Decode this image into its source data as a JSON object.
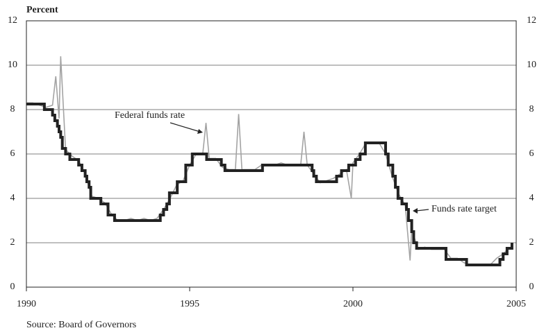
{
  "chart_data": {
    "type": "line",
    "y_label": "Percent",
    "source": "Source: Board of Governors",
    "xlim": [
      1990,
      2005
    ],
    "xticks": [
      1990,
      1995,
      2000,
      2005
    ],
    "ylim": [
      0,
      12
    ],
    "yticks": [
      0,
      2,
      4,
      6,
      8,
      10,
      12
    ],
    "grid": true,
    "series": [
      {
        "name": "Federal funds rate",
        "color": "#a3a3a3",
        "step": false,
        "x": [
          1990.0,
          1990.2,
          1990.4,
          1990.6,
          1990.8,
          1990.9,
          1991.0,
          1991.05,
          1991.2,
          1991.4,
          1991.6,
          1991.8,
          1992.0,
          1992.2,
          1992.4,
          1992.6,
          1992.8,
          1993.0,
          1993.2,
          1993.4,
          1993.6,
          1993.8,
          1994.0,
          1994.2,
          1994.4,
          1994.6,
          1994.8,
          1995.0,
          1995.2,
          1995.4,
          1995.5,
          1995.6,
          1995.8,
          1996.0,
          1996.2,
          1996.4,
          1996.5,
          1996.6,
          1996.8,
          1997.0,
          1997.2,
          1997.4,
          1997.6,
          1997.8,
          1998.0,
          1998.2,
          1998.4,
          1998.5,
          1998.6,
          1998.8,
          1999.0,
          1999.2,
          1999.4,
          1999.6,
          1999.8,
          1999.95,
          2000.0,
          2000.2,
          2000.4,
          2000.6,
          2000.8,
          2001.0,
          2001.2,
          2001.4,
          2001.6,
          2001.75,
          2001.8,
          2002.0,
          2002.2,
          2002.4,
          2002.6,
          2002.8,
          2003.0,
          2003.2,
          2003.4,
          2003.6,
          2003.8,
          2004.0,
          2004.2,
          2004.4,
          2004.6,
          2004.8
        ],
        "values": [
          8.3,
          8.3,
          8.2,
          8.1,
          8.2,
          9.5,
          7.6,
          10.4,
          6.2,
          5.9,
          5.7,
          5.1,
          4.1,
          4.0,
          3.8,
          3.3,
          3.0,
          3.0,
          3.1,
          3.0,
          3.1,
          3.0,
          3.1,
          3.5,
          4.0,
          4.6,
          4.8,
          5.5,
          6.0,
          6.0,
          7.4,
          5.8,
          5.8,
          5.4,
          5.3,
          5.3,
          7.8,
          5.3,
          5.3,
          5.3,
          5.5,
          5.5,
          5.5,
          5.6,
          5.5,
          5.5,
          5.5,
          7.0,
          5.5,
          5.1,
          4.7,
          4.8,
          4.9,
          5.1,
          5.3,
          4.0,
          5.6,
          6.0,
          6.5,
          6.5,
          6.5,
          6.0,
          5.0,
          4.2,
          3.7,
          1.2,
          2.6,
          1.7,
          1.8,
          1.7,
          1.7,
          1.7,
          1.3,
          1.3,
          1.1,
          1.0,
          1.0,
          1.0,
          1.0,
          1.3,
          1.5,
          1.8
        ]
      },
      {
        "name": "Funds rate target",
        "color": "#222222",
        "step": true,
        "x": [
          1990.0,
          1990.55,
          1990.8,
          1990.87,
          1990.95,
          1991.0,
          1991.05,
          1991.1,
          1991.2,
          1991.33,
          1991.6,
          1991.7,
          1991.8,
          1991.85,
          1991.92,
          1991.97,
          1992.28,
          1992.5,
          1992.7,
          1994.1,
          1994.2,
          1994.3,
          1994.38,
          1994.62,
          1994.88,
          1995.08,
          1995.52,
          1995.97,
          1996.08,
          1997.23,
          1998.75,
          1998.8,
          1998.88,
          1999.5,
          1999.65,
          1999.87,
          2000.08,
          2000.22,
          2000.38,
          2001.0,
          2001.08,
          2001.22,
          2001.3,
          2001.38,
          2001.5,
          2001.64,
          2001.7,
          2001.8,
          2001.86,
          2001.95,
          2002.85,
          2003.48,
          2004.5,
          2004.6,
          2004.72,
          2004.87
        ],
        "values": [
          8.25,
          8.0,
          7.75,
          7.5,
          7.25,
          7.0,
          6.75,
          6.25,
          6.0,
          5.75,
          5.5,
          5.25,
          5.0,
          4.75,
          4.5,
          4.0,
          3.75,
          3.25,
          3.0,
          3.25,
          3.5,
          3.75,
          4.25,
          4.75,
          5.5,
          6.0,
          5.75,
          5.5,
          5.25,
          5.5,
          5.25,
          5.0,
          4.75,
          5.0,
          5.25,
          5.5,
          5.75,
          6.0,
          6.5,
          6.0,
          5.5,
          5.0,
          4.5,
          4.0,
          3.75,
          3.5,
          3.0,
          2.5,
          2.0,
          1.75,
          1.25,
          1.0,
          1.25,
          1.5,
          1.75,
          2.0
        ]
      }
    ]
  }
}
